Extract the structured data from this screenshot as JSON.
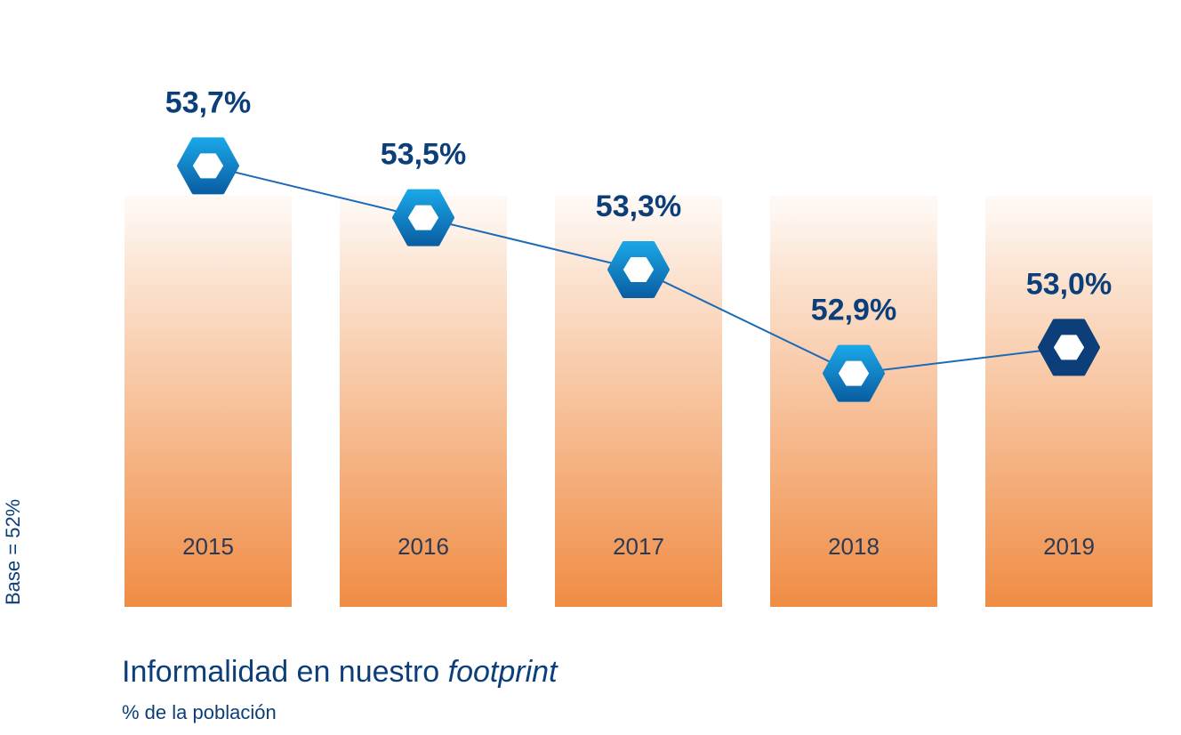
{
  "chart_data": {
    "type": "line",
    "title_main": "Informalidad en nuestro",
    "title_italic": "footprint",
    "subtitle": "% de la población",
    "base_label": "Base = 52%",
    "ylim": [
      52,
      53.9
    ],
    "categories": [
      "2015",
      "2016",
      "2017",
      "2018",
      "2019"
    ],
    "values": [
      53.7,
      53.5,
      53.3,
      52.9,
      53.0
    ],
    "value_labels": [
      "53,7%",
      "53,5%",
      "53,3%",
      "52,9%",
      "53,0%"
    ],
    "highlight_index": 4
  },
  "colors": {
    "bar_top": "#fdf1e8",
    "bar_bottom": "#f08c44",
    "line": "#1a6ab8",
    "marker_light_top": "#1aa6e6",
    "marker_light_bottom": "#0a5fa3",
    "marker_dark": "#0c3f7a",
    "text_dark": "#0c3f7a"
  }
}
